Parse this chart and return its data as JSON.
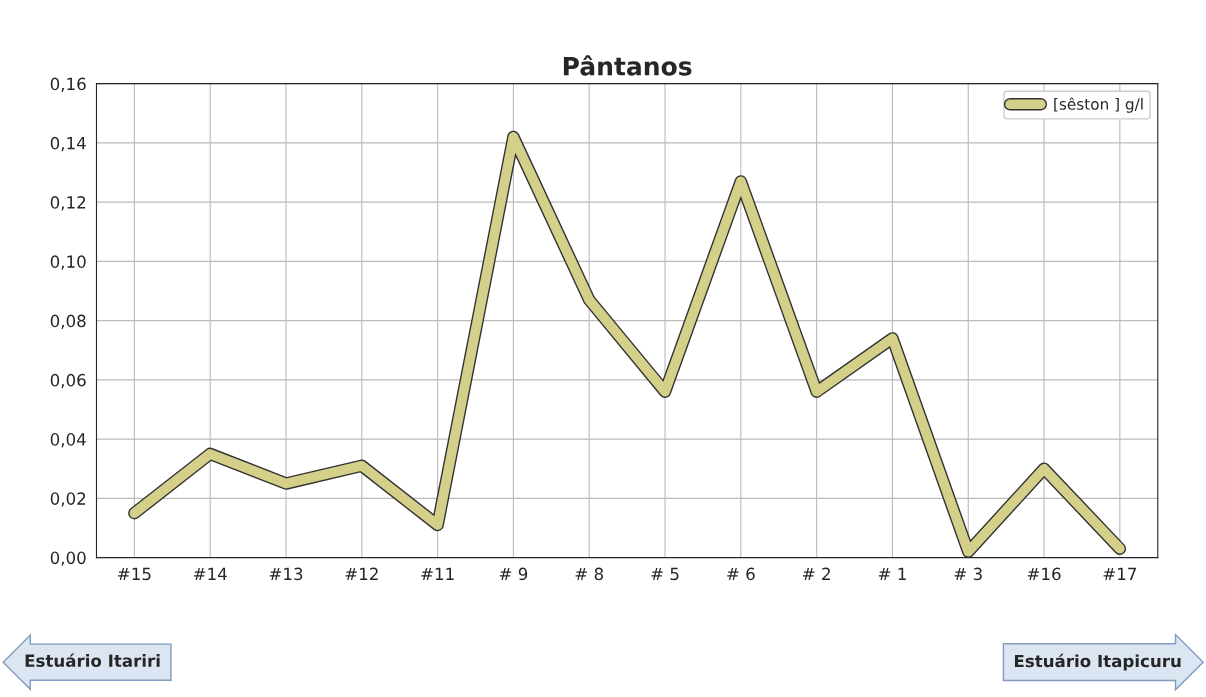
{
  "chart_data": {
    "type": "line",
    "title": "Pântanos",
    "categories": [
      "#15",
      "#14",
      "#13",
      "#12",
      "#11",
      "# 9",
      "# 8",
      "# 5",
      "# 6",
      "# 2",
      "# 1",
      "# 3",
      "#16",
      "#17"
    ],
    "series": [
      {
        "name": "[sêston ] g/l",
        "color": "#d4d08a",
        "values": [
          0.015,
          0.035,
          0.025,
          0.031,
          0.011,
          0.142,
          0.087,
          0.056,
          0.127,
          0.056,
          0.074,
          0.002,
          0.03,
          0.003
        ]
      }
    ],
    "ylim": [
      0,
      0.16
    ],
    "yticks": [
      {
        "value": 0,
        "label": "0,00"
      },
      {
        "value": 0.02,
        "label": "0,02"
      },
      {
        "value": 0.04,
        "label": "0,04"
      },
      {
        "value": 0.06,
        "label": "0,06"
      },
      {
        "value": 0.08,
        "label": "0,08"
      },
      {
        "value": 0.1,
        "label": "0,10"
      },
      {
        "value": 0.12,
        "label": "0,12"
      },
      {
        "value": 0.14,
        "label": "0,14"
      },
      {
        "value": 0.16,
        "label": "0,16"
      }
    ],
    "grid": true,
    "legend": "top right",
    "annotations": [
      "Estuário Itariri",
      "Estuário Itapicuru"
    ]
  }
}
